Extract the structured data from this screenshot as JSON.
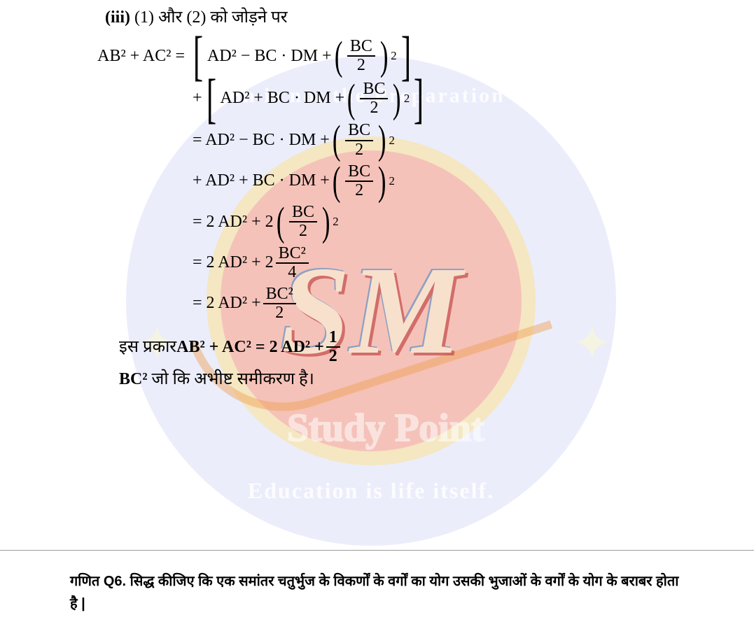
{
  "watermark": {
    "top_text": "Education is not the Preparation for life,",
    "bottom_text": "Education is life itself.",
    "logo_text": "SM",
    "brand_text": "Study Point",
    "colors": {
      "outer_circle": "#dadff8",
      "ring": "#f8e4aa",
      "inner_circle": "#f5b6b6",
      "star": "#faf6d8",
      "text": "#ffffff"
    }
  },
  "heading": {
    "num": "(iii)",
    "text": "(1) और (2) को जोड़ने पर"
  },
  "equations": {
    "lhs": "AB² + AC² =",
    "r1": "AD² − BC · DM +",
    "bc2": {
      "num": "BC",
      "den": "2"
    },
    "r2_prefix": "+",
    "r2": "AD² + BC · DM +",
    "r3_eq": "= AD² − BC · DM +",
    "r4_prefix": "+ AD² + BC · DM +",
    "r5_eq": "= 2 AD² + 2",
    "r6_eq": "= 2 AD² + 2",
    "r6_frac": {
      "num": "BC²",
      "den": "4"
    },
    "r7_eq": "= 2 AD² +",
    "r7_frac": {
      "num": "BC²",
      "den": "2"
    }
  },
  "conclusion": {
    "l1_pre": "इस प्रकार ",
    "l1_bold": "AB² + AC² = 2 AD² + ",
    "l1_frac": {
      "num": "1",
      "den": "2"
    },
    "l2_bold": "BC²",
    "l2_rest": " जो कि अभीष्ट समीकरण है।"
  },
  "question": {
    "text": "गणित Q6. सिद्ध कीजिए कि एक समांतर चतुर्भुज के विकर्णों के वर्गों का योग उसकी भुजाओं के वर्गों के योग के बराबर होता है |"
  },
  "style": {
    "page_bg": "#ffffff",
    "text_color": "#000000",
    "body_fontsize": 24,
    "question_fontsize": 20
  }
}
